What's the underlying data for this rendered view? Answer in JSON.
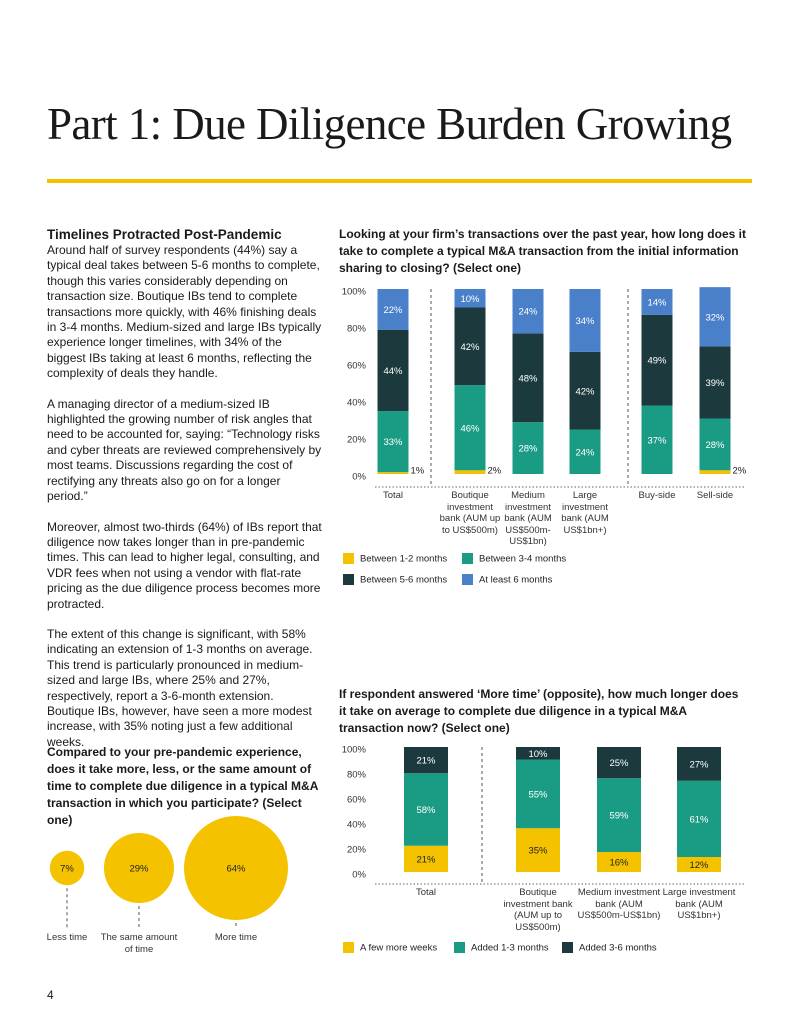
{
  "title": "Part 1: Due Diligence Burden Growing",
  "section": {
    "heading": "Timelines Protracted Post-Pandemic",
    "paragraphs": [
      "Around half of survey respondents (44%) say a typical deal takes between 5-6 months to complete, though this varies considerably depending on transaction size. Boutique IBs tend to complete transactions more quickly, with 46% finishing deals in 3-4 months. Medium-sized and large IBs typically experience longer timelines, with 34% of the biggest IBs taking at least 6 months, reflecting the complexity of deals they handle.",
      "A managing director of a medium-sized IB highlighted the growing number of risk angles that need to be accounted for, saying: “Technology risks and cyber threats are reviewed comprehensively by most teams. Discussions regarding the cost of rectifying any threats also go on for a longer period.”",
      "Moreover, almost two-thirds (64%) of IBs report that diligence now takes longer than in pre-pandemic times. This can lead to higher legal, consulting, and VDR fees when not using a vendor with flat-rate pricing as the due diligence process becomes more protracted.",
      "The extent of this change is significant, with 58% indicating an extension of 1-3 months on average. This trend is particularly pronounced in medium-sized and large IBs, where 25% and 27%, respectively, report a 3-6-month extension. Boutique IBs, however, have seen a more modest increase, with 35% noting just a few additional weeks."
    ]
  },
  "chart_data": [
    {
      "type": "stacked_bar",
      "title": "Looking at your firm’s transactions over the past year, how long does it take to complete a typical M&A transaction from the initial information sharing to closing? (Select one)",
      "categories": [
        "Total",
        "Boutique investment bank (AUM up to US$500m)",
        "Medium investment bank (AUM US$500m-US$1bn)",
        "Large investment bank (AUM US$1bn+)",
        "Buy-side",
        "Sell-side"
      ],
      "series": [
        {
          "name": "Between 1-2 months",
          "color": "#f5c200",
          "values": [
            1,
            2,
            null,
            null,
            null,
            2
          ],
          "value_labels": [
            "1%",
            "2%",
            null,
            null,
            null,
            "2%"
          ]
        },
        {
          "name": "Between 3-4 months",
          "color": "#1a9c84",
          "values": [
            33,
            46,
            28,
            24,
            37,
            28
          ],
          "value_labels": [
            "33%",
            "46%",
            "28%",
            "24%",
            "37%",
            "28%"
          ]
        },
        {
          "name": "Between 5-6 months",
          "color": "#1c3a3e",
          "values": [
            44,
            42,
            48,
            42,
            49,
            39
          ],
          "value_labels": [
            "44%",
            "42%",
            "48%",
            "42%",
            "49%",
            "39%"
          ]
        },
        {
          "name": "At least 6 months",
          "color": "#4a7fc9",
          "values": [
            22,
            10,
            24,
            34,
            14,
            32
          ],
          "value_labels": [
            "22%",
            "10%",
            "24%",
            "34%",
            "14%",
            "32%"
          ]
        }
      ],
      "ylim": [
        0,
        100
      ],
      "yticks": [
        {
          "value": 0,
          "label": "0%"
        },
        {
          "value": 20,
          "label": "20%"
        },
        {
          "value": 40,
          "label": "40%"
        },
        {
          "value": 60,
          "label": "60%"
        },
        {
          "value": 80,
          "label": "80%"
        },
        {
          "value": 100,
          "label": "100%"
        }
      ]
    },
    {
      "type": "stacked_bar",
      "title": "If respondent answered ‘More time’ (opposite), how much longer does it take on average to complete due diligence in a typical M&A transaction now? (Select one)",
      "categories": [
        "Total",
        "Boutique investment bank (AUM up to US$500m)",
        "Medium investment bank (AUM US$500m-US$1bn)",
        "Large investment bank (AUM US$1bn+)"
      ],
      "series": [
        {
          "name": "A few more weeks",
          "color": "#f5c200",
          "values": [
            21,
            35,
            16,
            12
          ],
          "value_labels": [
            "21%",
            "35%",
            "16%",
            "12%"
          ]
        },
        {
          "name": "Added 1-3 months",
          "color": "#1a9c84",
          "values": [
            58,
            55,
            59,
            61
          ],
          "value_labels": [
            "58%",
            "55%",
            "59%",
            "61%"
          ]
        },
        {
          "name": "Added 3-6 months",
          "color": "#1c3a3e",
          "values": [
            21,
            10,
            25,
            27
          ],
          "value_labels": [
            "21%",
            "10%",
            "25%",
            "27%"
          ]
        }
      ],
      "ylim": [
        0,
        100
      ],
      "yticks": [
        {
          "value": 0,
          "label": "0%"
        },
        {
          "value": 20,
          "label": "20%"
        },
        {
          "value": 40,
          "label": "40%"
        },
        {
          "value": 60,
          "label": "60%"
        },
        {
          "value": 80,
          "label": "80%"
        },
        {
          "value": 100,
          "label": "100%"
        }
      ]
    },
    {
      "type": "bubble",
      "title": "Compared to your pre-pandemic experience, does it take more, less, or the same amount of time to complete due diligence in a typical M&A transaction in which you participate? (Select one)",
      "categories": [
        "Less time",
        "The same amount of time",
        "More time"
      ],
      "values": [
        7,
        29,
        64
      ],
      "value_labels": [
        "7%",
        "29%",
        "64%"
      ],
      "color": "#f5c200"
    }
  ],
  "page_number": "4"
}
